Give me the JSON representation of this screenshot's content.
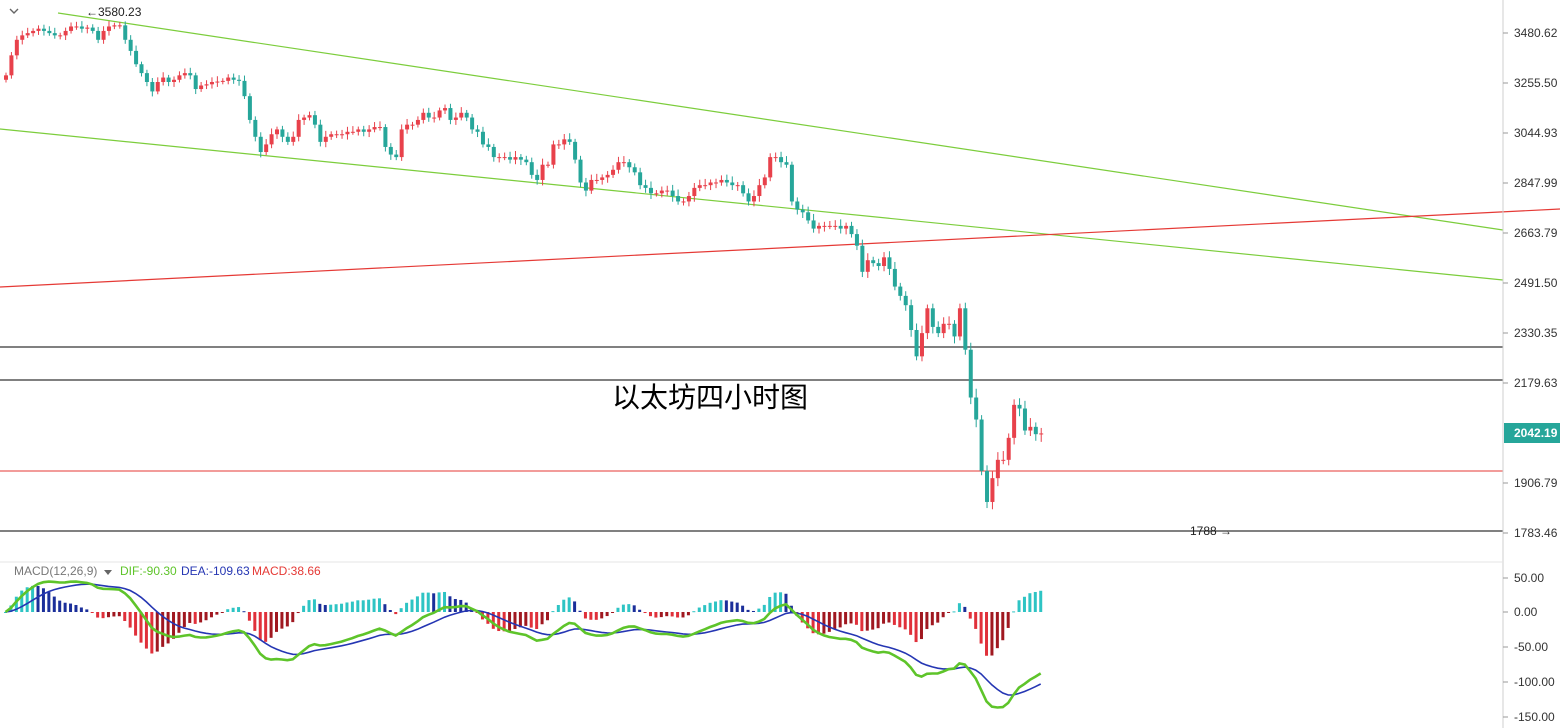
{
  "colors": {
    "up": "#e8414b",
    "down": "#26a69a",
    "channel": "#7ccd3c",
    "trend": "#e53935",
    "level": "#000000",
    "dif": "#5ec42a",
    "dea": "#2536b3",
    "hist_pos_strong": "#2ec4c4",
    "hist_pos_weak": "#1b2f9a",
    "hist_neg_strong": "#e0303a",
    "hist_neg_weak": "#a01820",
    "price_tag": "#26a69a",
    "axis_line": "#cfcfcf"
  },
  "header": {
    "collapse_icon": "chevron-down-icon"
  },
  "chart_title": "以太坊四小时图",
  "chart_data": [
    {
      "type": "candlestick",
      "title": "以太坊四小时图",
      "y_ticks": [
        "3480.62",
        "3255.50",
        "3044.93",
        "2847.99",
        "2663.79",
        "2491.50",
        "2330.35",
        "2179.63",
        "1906.79",
        "1783.46"
      ],
      "y_ticks_values": [
        3480.62,
        3255.5,
        3044.93,
        2847.99,
        2663.79,
        2491.5,
        2330.35,
        2179.63,
        1906.79,
        1783.46
      ],
      "last_price": "2042.19",
      "last_price_value": 2042.19,
      "high_marker": "3580.23",
      "low_marker": "1788",
      "candles_close": [
        3290,
        3380,
        3450,
        3470,
        3480,
        3490,
        3500,
        3490,
        3480,
        3470,
        3470,
        3490,
        3510,
        3510,
        3500,
        3505,
        3490,
        3450,
        3490,
        3510,
        3515,
        3515,
        3450,
        3400,
        3340,
        3300,
        3260,
        3220,
        3260,
        3280,
        3260,
        3270,
        3290,
        3300,
        3290,
        3230,
        3245,
        3250,
        3260,
        3262,
        3265,
        3280,
        3270,
        3265,
        3200,
        3100,
        3030,
        2970,
        3000,
        3040,
        3060,
        3030,
        3010,
        3030,
        3100,
        3110,
        3120,
        3080,
        3010,
        3030,
        3040,
        3040,
        3040,
        3050,
        3050,
        3060,
        3050,
        3060,
        3070,
        3070,
        2990,
        2960,
        2950,
        3060,
        3080,
        3080,
        3100,
        3130,
        3110,
        3110,
        3140,
        3150,
        3100,
        3110,
        3130,
        3110,
        3060,
        3050,
        3000,
        2990,
        2950,
        2950,
        2950,
        2940,
        2950,
        2940,
        2930,
        2880,
        2860,
        2920,
        2920,
        3000,
        3000,
        3020,
        3010,
        2940,
        2850,
        2820,
        2860,
        2860,
        2870,
        2880,
        2900,
        2930,
        2930,
        2910,
        2890,
        2840,
        2830,
        2810,
        2810,
        2820,
        2820,
        2800,
        2780,
        2780,
        2800,
        2830,
        2840,
        2840,
        2850,
        2850,
        2860,
        2850,
        2840,
        2840,
        2810,
        2780,
        2800,
        2840,
        2870,
        2950,
        2950,
        2930,
        2920,
        2780,
        2750,
        2740,
        2710,
        2680,
        2690,
        2690,
        2690,
        2690,
        2680,
        2690,
        2660,
        2620,
        2530,
        2570,
        2560,
        2550,
        2580,
        2540,
        2480,
        2450,
        2420,
        2340,
        2260,
        2330,
        2410,
        2350,
        2330,
        2360,
        2360,
        2320,
        2410,
        2280,
        2140,
        2080,
        1940,
        1860,
        1920,
        1970,
        1970,
        2030,
        2120,
        2110,
        2050,
        2060,
        2040,
        2042
      ]
    },
    {
      "type": "macd",
      "label": "MACD(12,26,9)",
      "dif_label": "DIF:-90.30",
      "dea_label": "DEA:-109.63",
      "macd_label": "MACD:38.66",
      "dif": -90.3,
      "dea": -109.63,
      "macd": 38.66,
      "y_ticks": [
        "50.00",
        "0.00",
        "-50.00",
        "-100.00",
        "-150.00"
      ],
      "y_ticks_values": [
        50,
        0,
        -50,
        -100,
        -150
      ]
    }
  ]
}
